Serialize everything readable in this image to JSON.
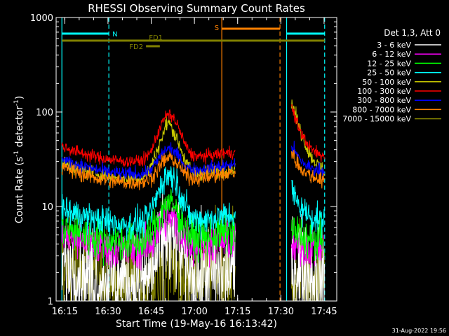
{
  "chart_data": {
    "type": "line",
    "title": "RHESSI Observing Summary Count Rates",
    "xlabel": "Start Time (19-May-16 16:13:42)",
    "ylabel_main": "Count Rate (s",
    "ylabel_sup1": "-1",
    "ylabel_mid": " detector",
    "ylabel_sup2": "-1",
    "ylabel_end": ")",
    "yscale": "log",
    "xlim_minutes": [
      -1.7,
      95.7
    ],
    "ylim": [
      1,
      1000
    ],
    "x_tick_minutes": [
      1.3,
      16.3,
      31.3,
      46.3,
      61.3,
      76.3,
      91.3
    ],
    "x_tick_labels": [
      "16:15",
      "16:30",
      "16:45",
      "17:00",
      "17:15",
      "17:30",
      "17:45"
    ],
    "y_ticks": [
      1,
      10,
      100,
      1000
    ],
    "y_tick_labels": [
      "1",
      "10",
      "100",
      "1000"
    ],
    "legend_header": "Det 1,3, Att 0",
    "legend_position": "top-right",
    "series": [
      {
        "name": "3 - 6 keV",
        "color": "#ffffff"
      },
      {
        "name": "6 - 12 keV",
        "color": "#ff00ff"
      },
      {
        "name": "12 - 25 keV",
        "color": "#00ff00"
      },
      {
        "name": "25 - 50 keV",
        "color": "#00ffff"
      },
      {
        "name": "50 - 100 keV",
        "color": "#c8c800"
      },
      {
        "name": "100 - 300 keV",
        "color": "#ff0000"
      },
      {
        "name": "300 - 800 keV",
        "color": "#0000ff"
      },
      {
        "name": "800 - 7000 keV",
        "color": "#ff8000"
      },
      {
        "name": "7000 - 15000 keV",
        "color": "#808000"
      }
    ],
    "data_gaps_minutes": [
      [
        60.5,
        79.5
      ]
    ],
    "flags": [
      {
        "label": "N",
        "color": "#00ffff",
        "bars_minutes": [
          [
            0.3,
            16.6
          ],
          [
            78.3,
            91.5
          ]
        ]
      },
      {
        "label": "S",
        "color": "#ff8000",
        "bars_minutes": [
          [
            55.8,
            76.0
          ]
        ]
      },
      {
        "label": "FD1",
        "color": "#808000",
        "bars_minutes": [
          [
            0.3,
            91.5
          ]
        ]
      },
      {
        "label": "FD2",
        "color": "#808000",
        "bars_minutes": [
          [
            29.5,
            34.3
          ]
        ]
      }
    ],
    "stamp": "31-Aug-2022 19:56"
  }
}
